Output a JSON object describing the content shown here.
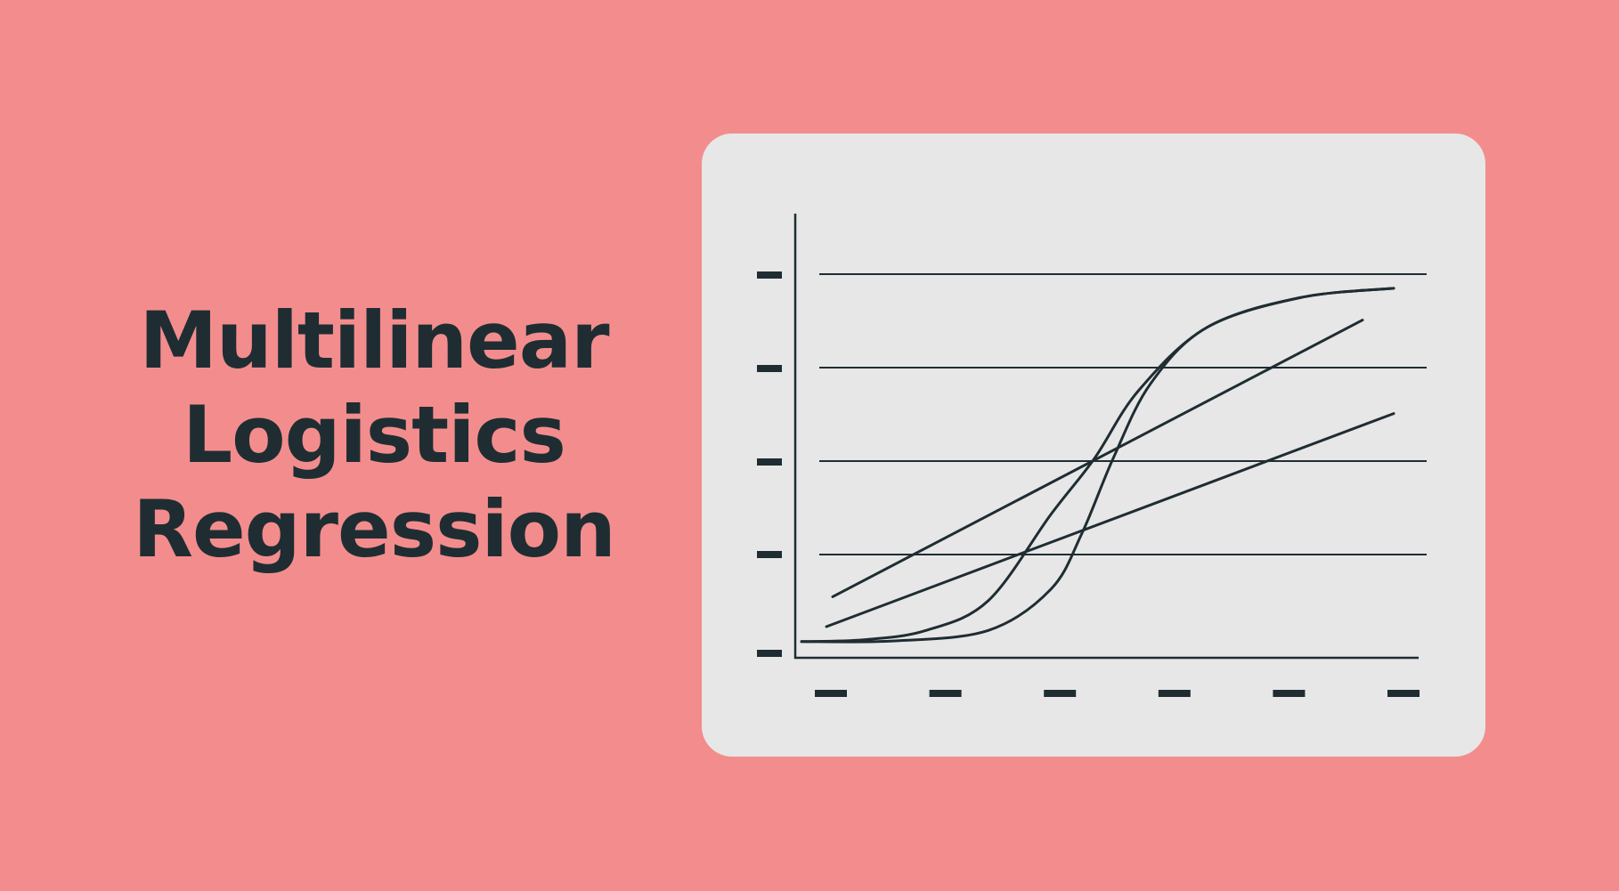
{
  "title_lines": [
    "Multilinear",
    "Logistics",
    "Regression"
  ],
  "colors": {
    "background": "#f38d8d",
    "card": "#e7e7e7",
    "ink": "#1f2d33"
  },
  "chart_data": {
    "type": "line",
    "title": "",
    "xlabel": "",
    "ylabel": "",
    "x_tick_count": 6,
    "y_tick_count": 5,
    "xlim": [
      0,
      10
    ],
    "ylim": [
      0,
      10
    ],
    "grid": true,
    "series": [
      {
        "x": [
          0,
          1,
          2,
          3,
          4,
          4.7,
          5.4,
          6.5,
          8,
          9.5
        ],
        "values": [
          0.1,
          0.15,
          0.4,
          1.2,
          3.5,
          5,
          6.8,
          8.5,
          9.3,
          9.55
        ]
      },
      {
        "x": [
          0,
          1.5,
          3,
          4,
          4.5,
          5,
          5.6,
          6.5,
          8,
          9.5
        ],
        "values": [
          0.1,
          0.12,
          0.4,
          1.5,
          3,
          5,
          7,
          8.5,
          9.3,
          9.55
        ]
      },
      {
        "x": [
          0.5,
          9
        ],
        "values": [
          1.3,
          8.7
        ]
      },
      {
        "x": [
          0.4,
          9.5
        ],
        "values": [
          0.5,
          6.2
        ]
      }
    ]
  }
}
